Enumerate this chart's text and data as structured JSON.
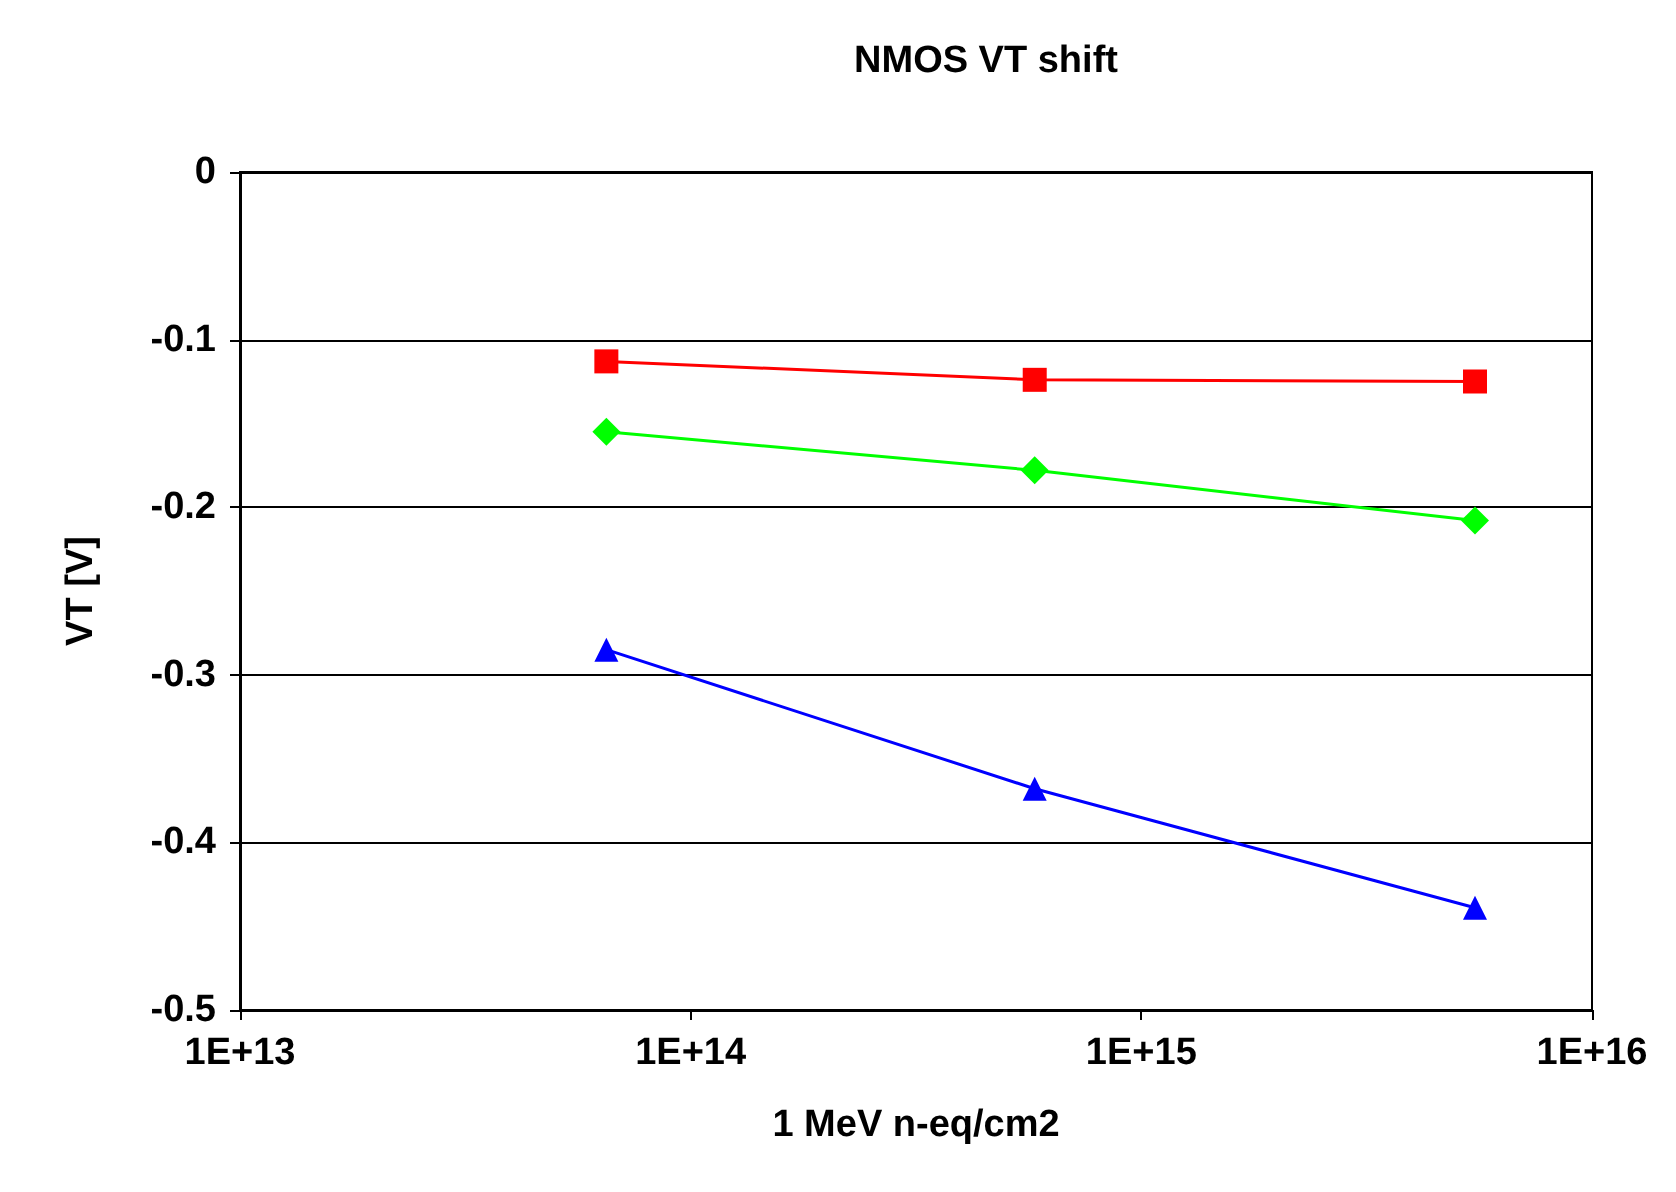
{
  "chart_data": {
    "type": "line",
    "title": "NMOS VT shift",
    "xlabel": "1 MeV n-eq/cm2",
    "ylabel": "VT [V]",
    "log": "x",
    "grid": "y",
    "xlim": [
      10000000000000.0,
      1e+16
    ],
    "xticks": [
      {
        "value": 10000000000000.0,
        "label": "1E+13"
      },
      {
        "value": 100000000000000.0,
        "label": "1E+14"
      },
      {
        "value": 1000000000000000.0,
        "label": "1E+15"
      },
      {
        "value": 1e+16,
        "label": "1E+16"
      }
    ],
    "ylim": [
      -0.5,
      0
    ],
    "yticks": [
      -0.5,
      -0.4,
      -0.3,
      -0.2,
      -0.1,
      0
    ],
    "x": [
      65000000000000.0,
      580000000000000.0,
      5500000000000000.0
    ],
    "series": [
      {
        "color": "#ff0000",
        "marker": "square",
        "values": [
          -0.113,
          -0.124,
          -0.125
        ]
      },
      {
        "color": "#00ff00",
        "marker": "diamond",
        "values": [
          -0.155,
          -0.178,
          -0.208
        ]
      },
      {
        "color": "#0000ff",
        "marker": "triangle",
        "values": [
          -0.285,
          -0.368,
          -0.439
        ]
      }
    ]
  }
}
